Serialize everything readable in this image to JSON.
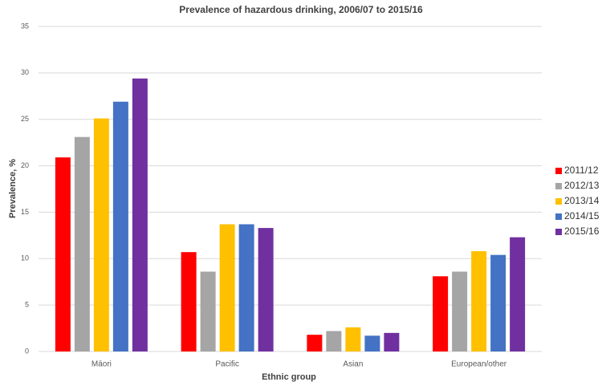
{
  "chart_data": {
    "type": "bar",
    "title": "Prevalence of hazardous drinking, 2006/07 to 2015/16",
    "x_label": "Ethnic group",
    "y_label": "Prevalence, %",
    "categories": [
      "Māori",
      "Pacific",
      "Asian",
      "European/other"
    ],
    "series": [
      {
        "name": "2011/12",
        "color": "#ff0000",
        "values": [
          20.9,
          10.7,
          1.8,
          8.1
        ]
      },
      {
        "name": "2012/13",
        "color": "#a5a5a5",
        "values": [
          23.1,
          8.6,
          2.2,
          8.6
        ]
      },
      {
        "name": "2013/14",
        "color": "#ffc000",
        "values": [
          25.1,
          13.7,
          2.6,
          10.8
        ]
      },
      {
        "name": "2014/15",
        "color": "#4472c4",
        "values": [
          26.9,
          13.7,
          1.7,
          10.4
        ]
      },
      {
        "name": "2015/16",
        "color": "#7030a0",
        "values": [
          29.4,
          13.3,
          2.0,
          12.3
        ]
      }
    ],
    "ylim": [
      0,
      35
    ],
    "yticks": [
      0,
      5,
      10,
      15,
      20,
      25,
      30,
      35
    ],
    "grid": true,
    "legend": "right"
  }
}
